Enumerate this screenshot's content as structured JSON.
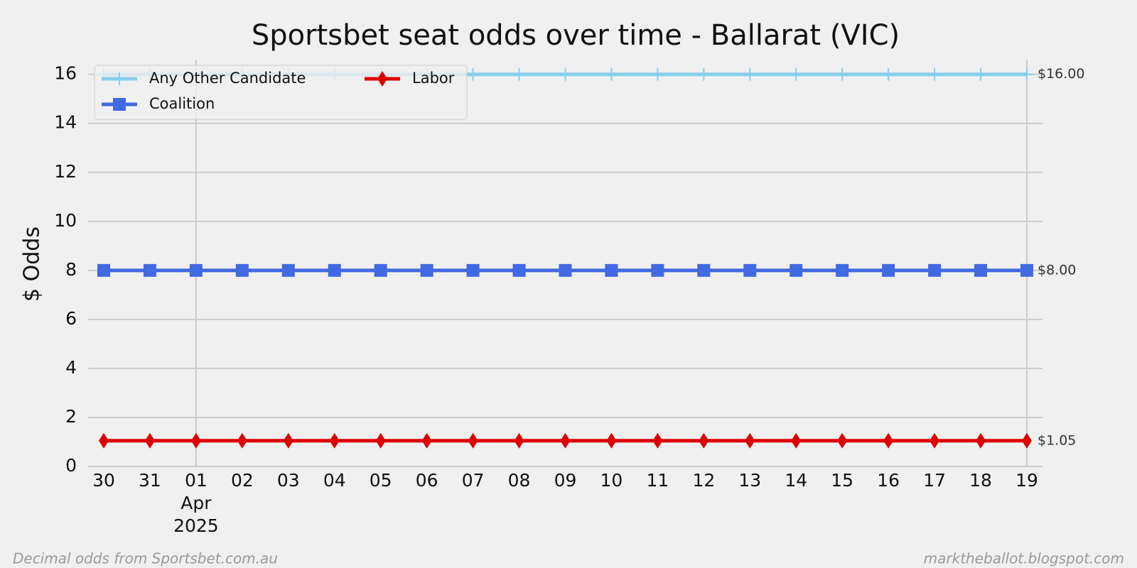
{
  "chart_data": {
    "type": "line",
    "title": "Sportsbet seat odds over time - Ballarat (VIC)",
    "ylabel": "$ Odds",
    "categories": [
      "30",
      "31",
      "01",
      "02",
      "03",
      "04",
      "05",
      "06",
      "07",
      "08",
      "09",
      "10",
      "11",
      "12",
      "13",
      "14",
      "15",
      "16",
      "17",
      "18",
      "19"
    ],
    "month_labels": [
      null,
      null,
      "Apr",
      null,
      null,
      null,
      null,
      null,
      null,
      null,
      null,
      null,
      null,
      null,
      null,
      null,
      null,
      null,
      null,
      null,
      null
    ],
    "year_labels": [
      null,
      null,
      "2025",
      null,
      null,
      null,
      null,
      null,
      null,
      null,
      null,
      null,
      null,
      null,
      null,
      null,
      null,
      null,
      null,
      null,
      null
    ],
    "ylim": [
      0,
      16.6
    ],
    "yticks": [
      0,
      2,
      4,
      6,
      8,
      10,
      12,
      14,
      16
    ],
    "grid": true,
    "legend": "upper left",
    "series": [
      {
        "name": "Any Other Candidate",
        "color": "#87ceeb",
        "marker": "plus",
        "values": [
          16,
          16,
          16,
          16,
          16,
          16,
          16,
          16,
          16,
          16,
          16,
          16,
          16,
          16,
          16,
          16,
          16,
          16,
          16,
          16,
          16
        ],
        "end_label": "$16.00"
      },
      {
        "name": "Coalition",
        "color": "#4169e1",
        "marker": "square",
        "values": [
          8,
          8,
          8,
          8,
          8,
          8,
          8,
          8,
          8,
          8,
          8,
          8,
          8,
          8,
          8,
          8,
          8,
          8,
          8,
          8,
          8
        ],
        "end_label": "$8.00"
      },
      {
        "name": "Labor",
        "color": "#dd0000",
        "marker": "diamond",
        "values": [
          1.05,
          1.05,
          1.05,
          1.05,
          1.05,
          1.05,
          1.05,
          1.05,
          1.05,
          1.05,
          1.05,
          1.05,
          1.05,
          1.05,
          1.05,
          1.05,
          1.05,
          1.05,
          1.05,
          1.05,
          1.05
        ],
        "end_label": "$1.05"
      }
    ],
    "footer_left": "Decimal odds from Sportsbet.com.au",
    "footer_right": "marktheballot.blogspot.com"
  }
}
